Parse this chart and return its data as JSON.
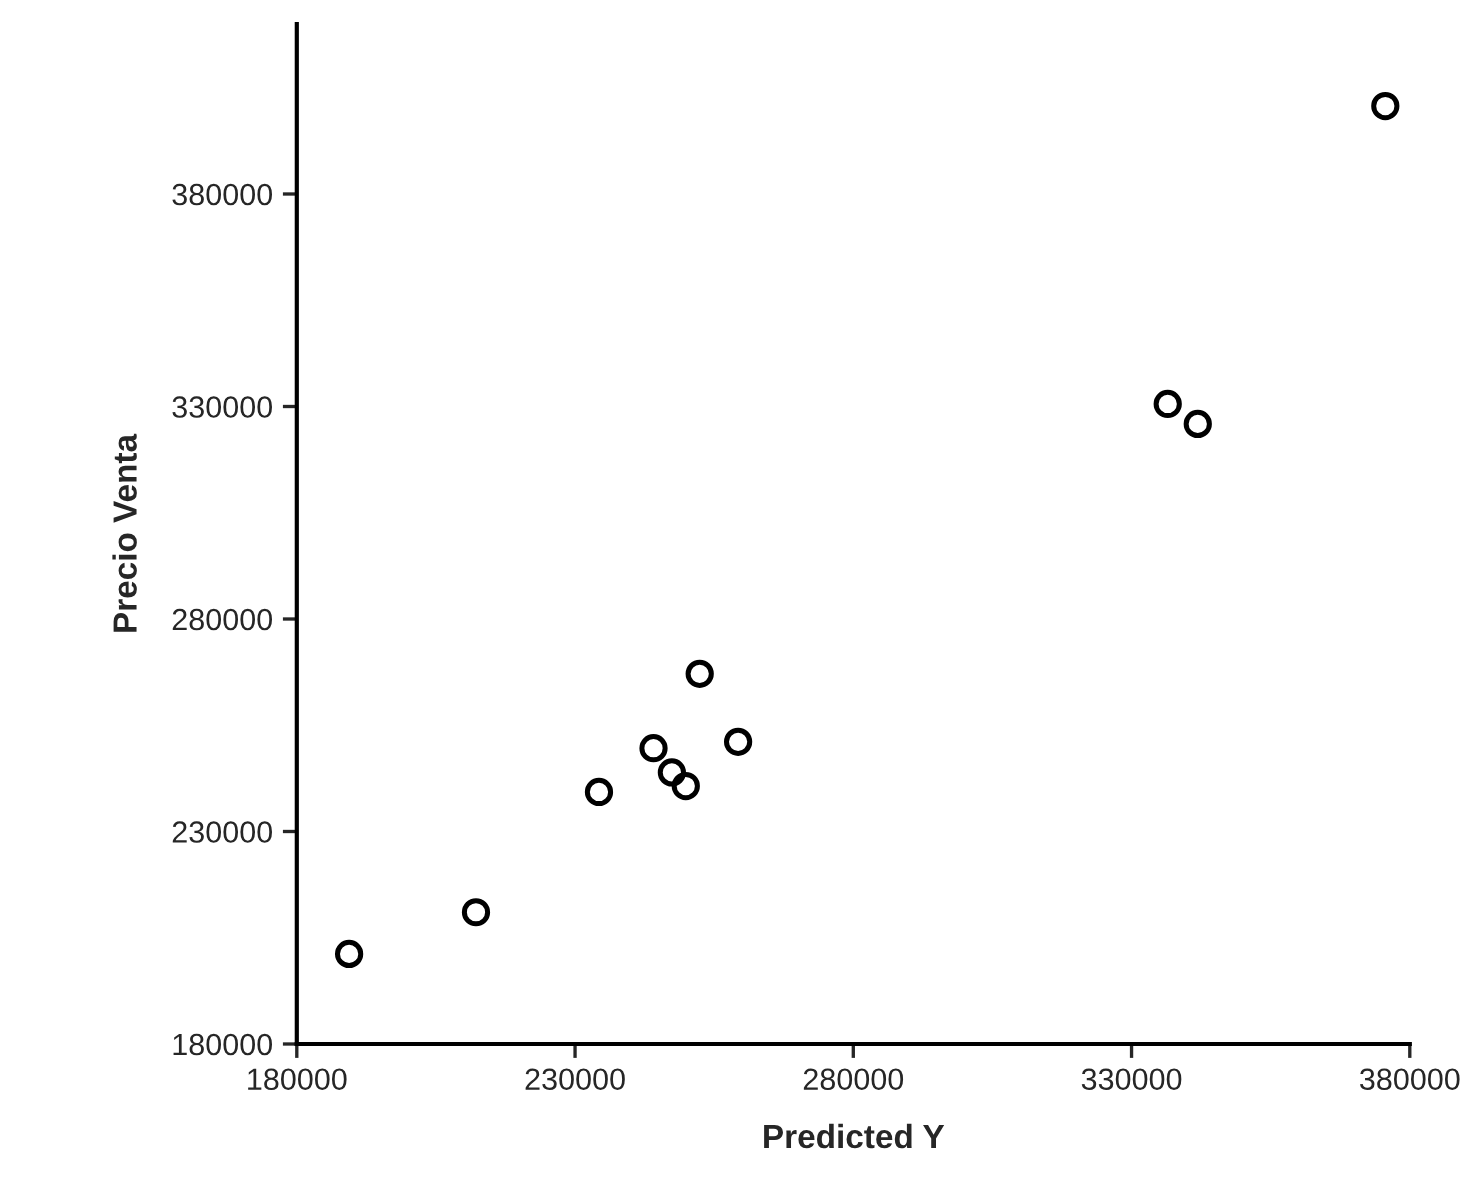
{
  "chart_data": {
    "type": "scatter",
    "xlabel": "Predicted Y",
    "ylabel": "Precio Venta",
    "x": [
      189400,
      212200,
      234300,
      244100,
      247400,
      249900,
      252400,
      259300,
      336500,
      341900,
      375600
    ],
    "values": [
      201200,
      211000,
      239300,
      249600,
      243900,
      240700,
      267100,
      251100,
      330600,
      325900,
      400700
    ],
    "color": "#000000",
    "marker": "circle",
    "xlim": [
      180000,
      380000
    ],
    "xticks": [
      180000,
      230000,
      280000,
      330000,
      380000
    ],
    "ylim": [
      180000,
      420000
    ],
    "yticks": [
      180000,
      230000,
      280000,
      330000,
      380000
    ],
    "grid": false,
    "legend": false
  }
}
